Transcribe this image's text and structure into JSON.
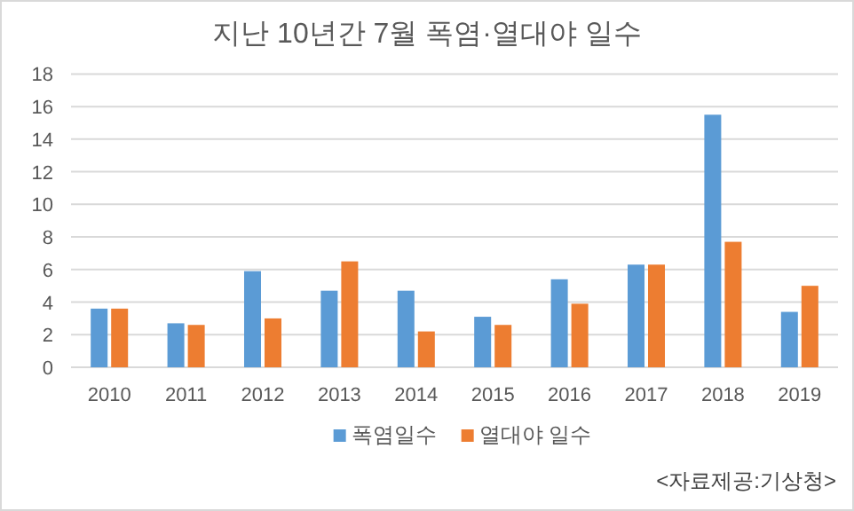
{
  "chart_data": {
    "type": "bar",
    "title": "지난 10년간 7월 폭염·열대야 일수",
    "categories": [
      "2010",
      "2011",
      "2012",
      "2013",
      "2014",
      "2015",
      "2016",
      "2017",
      "2018",
      "2019"
    ],
    "series": [
      {
        "name": "폭염일수",
        "color": "#5b9bd5",
        "values": [
          3.6,
          2.7,
          5.9,
          4.7,
          4.7,
          3.1,
          5.4,
          6.3,
          15.5,
          3.4
        ]
      },
      {
        "name": "열대야 일수",
        "color": "#ed7d31",
        "values": [
          3.6,
          2.6,
          3.0,
          6.5,
          2.2,
          2.6,
          3.9,
          6.3,
          7.7,
          5.0
        ]
      }
    ],
    "ylim": [
      0,
      18
    ],
    "yticks": [
      0,
      2,
      4,
      6,
      8,
      10,
      12,
      14,
      16,
      18
    ],
    "grid": "y",
    "legend": "bottom",
    "annotations": [
      "<자료제공:기상청>"
    ]
  }
}
